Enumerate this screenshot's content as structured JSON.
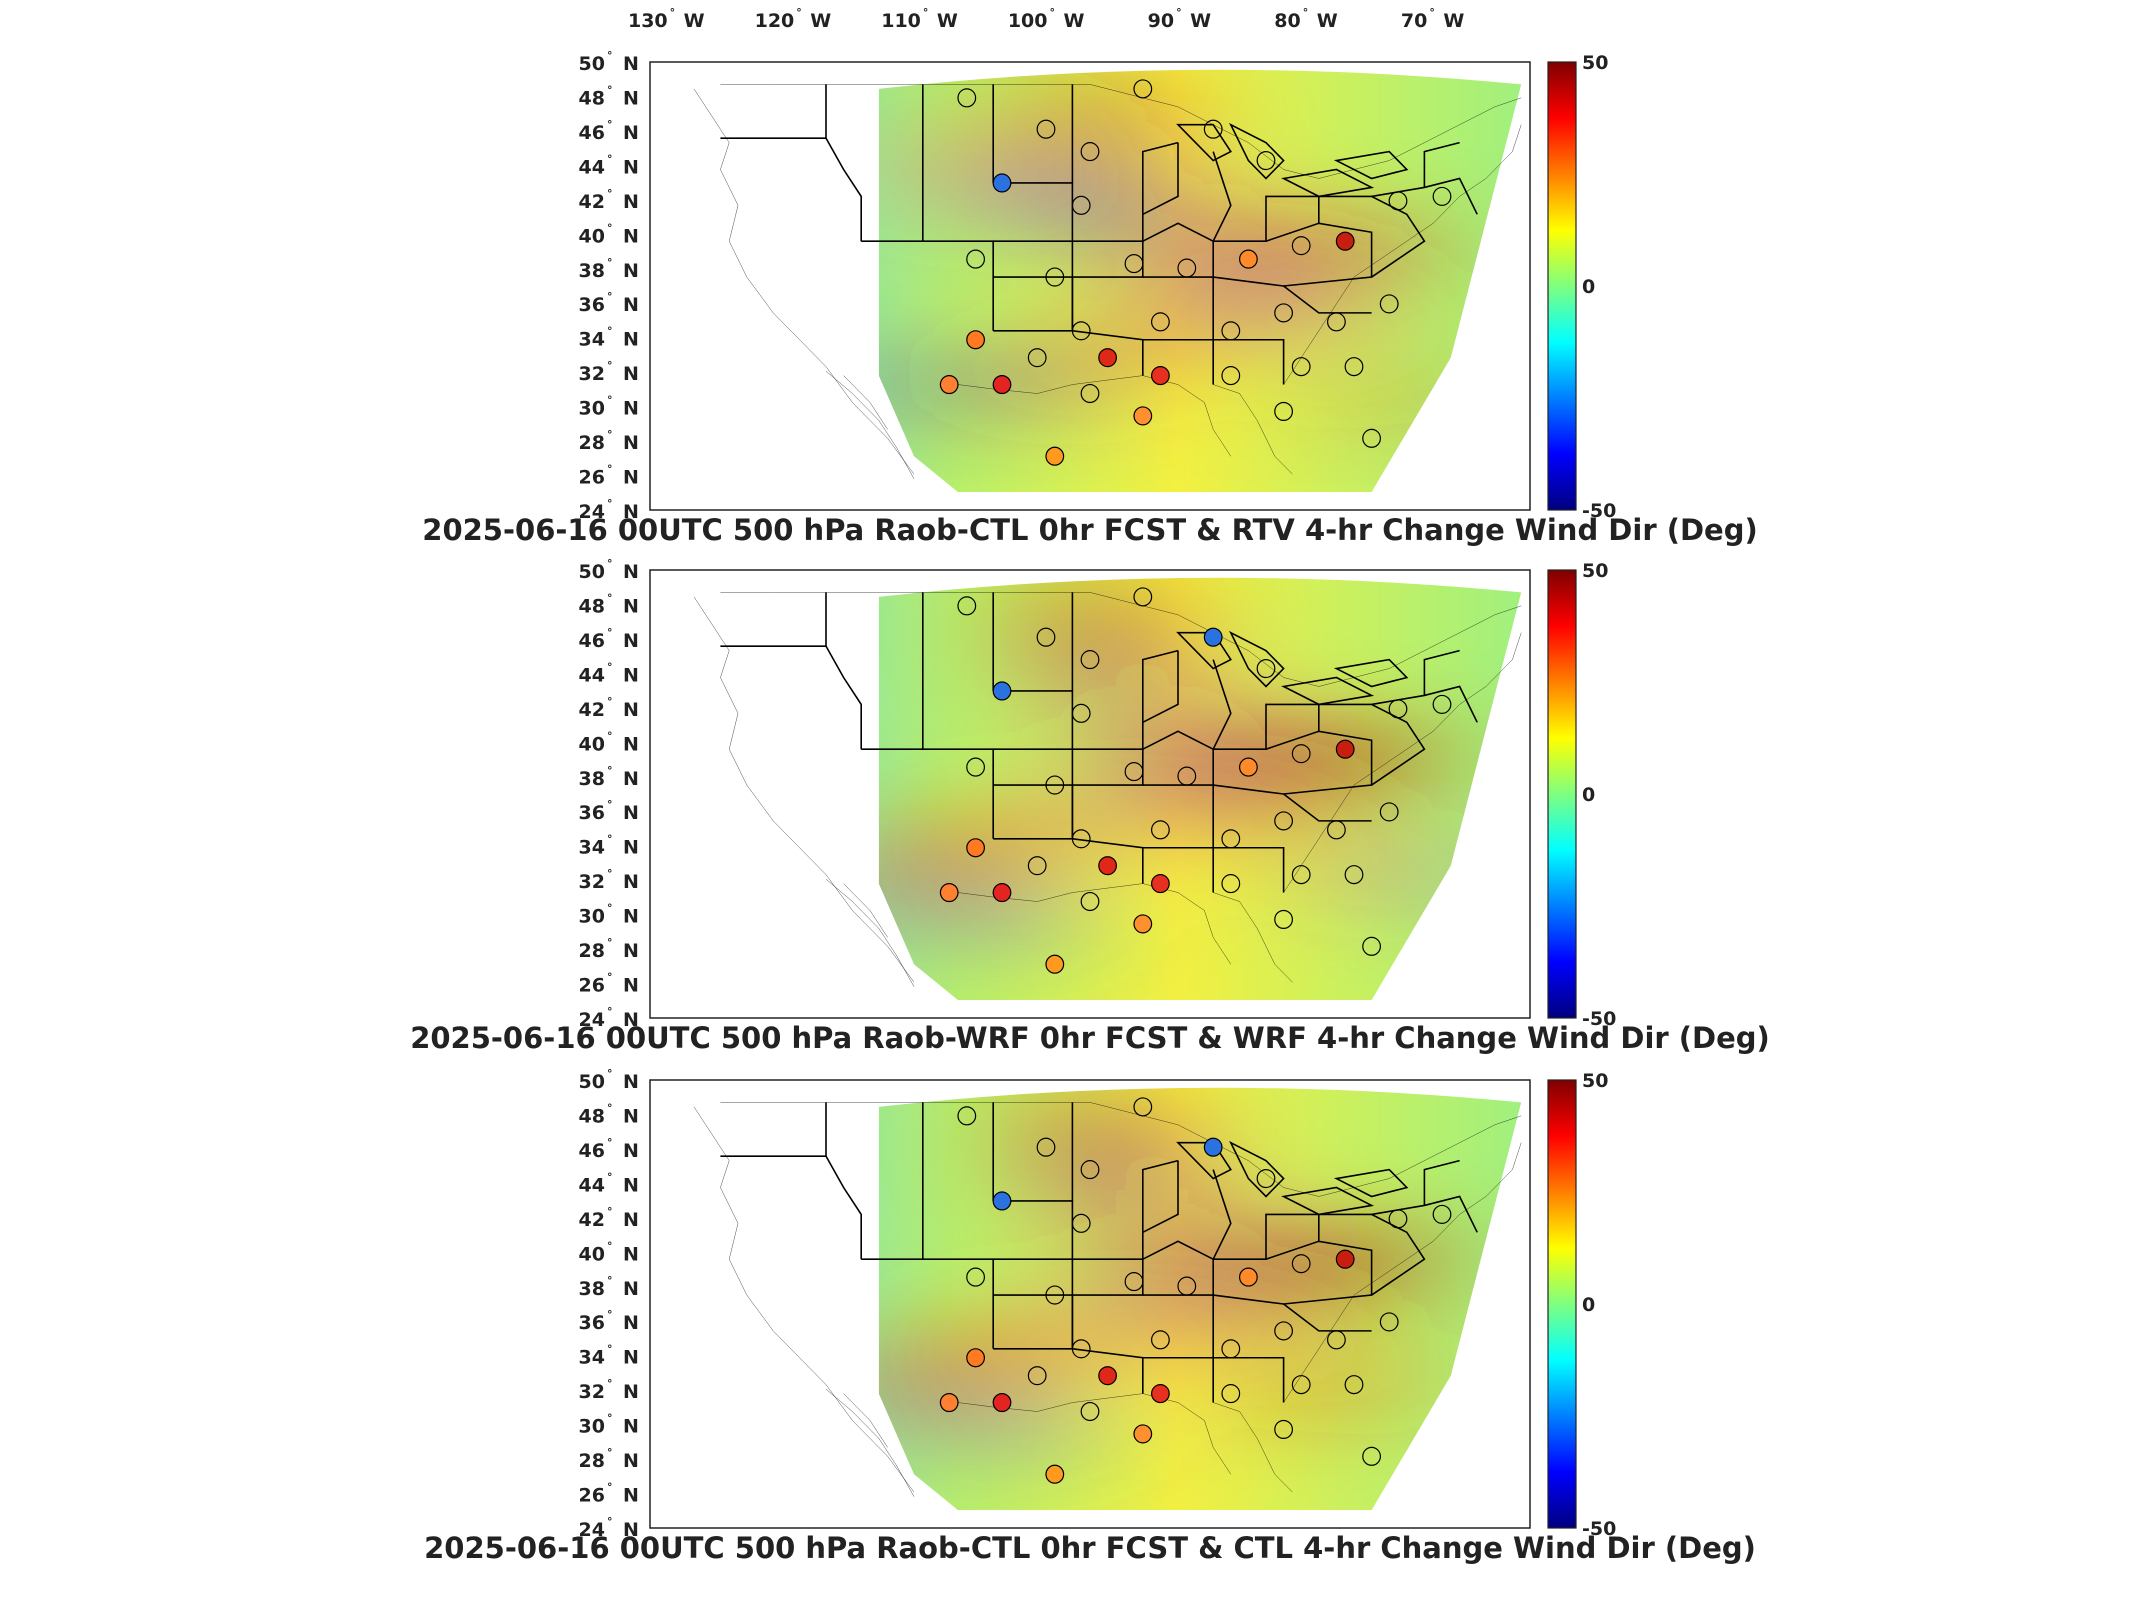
{
  "figure": {
    "lon_ticks": [
      {
        "deg": "130",
        "hemi": "W"
      },
      {
        "deg": "120",
        "hemi": "W"
      },
      {
        "deg": "110",
        "hemi": "W"
      },
      {
        "deg": "100",
        "hemi": "W"
      },
      {
        "deg": "90",
        "hemi": "W"
      },
      {
        "deg": "80",
        "hemi": "W"
      },
      {
        "deg": "70",
        "hemi": "W"
      }
    ],
    "lat_ticks": [
      {
        "deg": "50",
        "hemi": "N"
      },
      {
        "deg": "48",
        "hemi": "N"
      },
      {
        "deg": "46",
        "hemi": "N"
      },
      {
        "deg": "44",
        "hemi": "N"
      },
      {
        "deg": "42",
        "hemi": "N"
      },
      {
        "deg": "40",
        "hemi": "N"
      },
      {
        "deg": "38",
        "hemi": "N"
      },
      {
        "deg": "36",
        "hemi": "N"
      },
      {
        "deg": "34",
        "hemi": "N"
      },
      {
        "deg": "32",
        "hemi": "N"
      },
      {
        "deg": "30",
        "hemi": "N"
      },
      {
        "deg": "28",
        "hemi": "N"
      },
      {
        "deg": "26",
        "hemi": "N"
      },
      {
        "deg": "24",
        "hemi": "N"
      }
    ],
    "degree_symbol": "°",
    "colorbar": {
      "min_label": "-50",
      "mid_label": "0",
      "max_label": "50",
      "colors": [
        "#00007f",
        "#0000ff",
        "#007fff",
        "#00ffff",
        "#7fff7f",
        "#ffff00",
        "#ff7f00",
        "#ff0000",
        "#7f0000"
      ]
    },
    "panels": [
      {
        "title": "2025-06-16 00UTC 500 hPa Raob-CTL 0hr FCST & RTV 4-hr Change Wind Dir (Deg)"
      },
      {
        "title": "2025-06-16 00UTC 500 hPa Raob-WRF 0hr FCST & WRF 4-hr Change Wind Dir (Deg)"
      },
      {
        "title": "2025-06-16 00UTC 500 hPa Raob-CTL 0hr FCST & CTL 4-hr Change Wind Dir (Deg)"
      }
    ]
  }
}
